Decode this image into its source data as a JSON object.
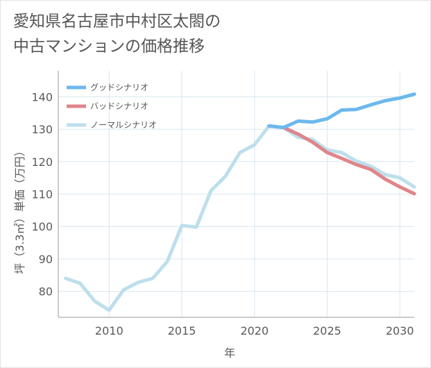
{
  "title_lines": [
    "愛知県名古屋市中村区太閤の",
    "中古マンションの価格推移"
  ],
  "chart_data": {
    "type": "line",
    "title": "愛知県名古屋市中村区太閤の中古マンションの価格推移",
    "xlabel": "年",
    "ylabel": "坪（3.3㎡）単価（万円）",
    "xlim": [
      2006.5,
      2031
    ],
    "ylim": [
      72,
      148
    ],
    "xticks": [
      2010,
      2015,
      2020,
      2025,
      2030
    ],
    "yticks": [
      80,
      90,
      100,
      110,
      120,
      130,
      140
    ],
    "grid": true,
    "legend_position": "top-left",
    "series": [
      {
        "name": "グッドシナリオ",
        "color": "#6cb8ee",
        "x": [
          2021,
          2022,
          2023,
          2024,
          2025,
          2026,
          2027,
          2028,
          2029,
          2030,
          2031
        ],
        "y": [
          131,
          130.5,
          132.5,
          132.2,
          133.2,
          135.9,
          136.1,
          137.5,
          138.8,
          139.6,
          140.8
        ]
      },
      {
        "name": "バッドシナリオ",
        "color": "#e0858a",
        "x": [
          2021,
          2022,
          2023,
          2024,
          2025,
          2026,
          2027,
          2028,
          2029,
          2030,
          2031
        ],
        "y": [
          131,
          130.5,
          128.5,
          126,
          122.8,
          121,
          119.1,
          117.6,
          114.6,
          112.2,
          110.1
        ]
      },
      {
        "name": "ノーマルシナリオ",
        "color": "#bddfec",
        "x": [
          2007,
          2008,
          2009,
          2010,
          2011,
          2012,
          2013,
          2014,
          2015,
          2016,
          2017,
          2018,
          2019,
          2020,
          2021,
          2022,
          2023,
          2024,
          2025,
          2026,
          2027,
          2028,
          2029,
          2030,
          2031
        ],
        "y": [
          84,
          82.5,
          77,
          74.2,
          80.5,
          82.8,
          84,
          89.2,
          100.3,
          99.8,
          111,
          115.5,
          122.8,
          125.2,
          131,
          130.5,
          127.5,
          126.8,
          123.6,
          122.8,
          120.2,
          118.6,
          116,
          115,
          112.2
        ]
      }
    ]
  }
}
